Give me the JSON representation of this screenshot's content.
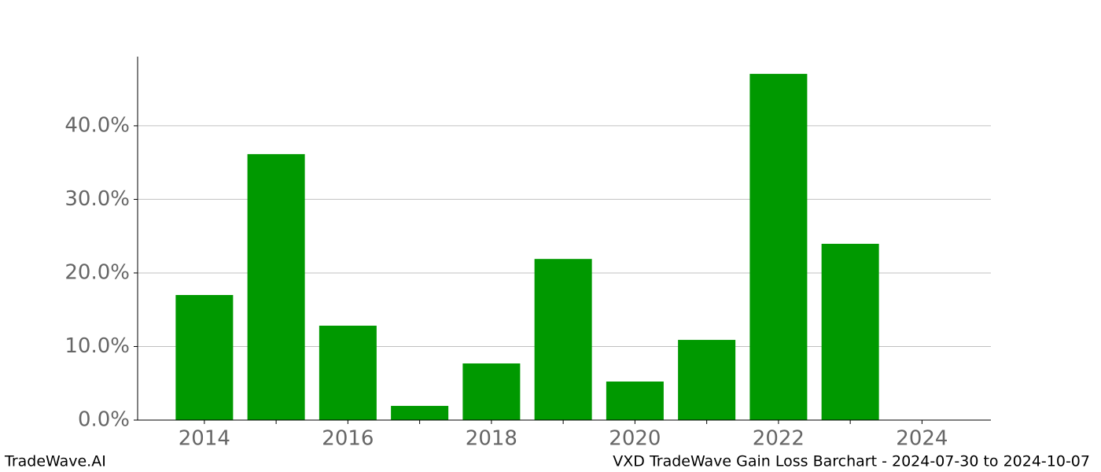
{
  "chart_data": {
    "type": "bar",
    "title": "VXD TradeWave Gain Loss Barchart - 2024-07-30 to 2024-10-07",
    "watermark": "TradeWave.AI",
    "x": [
      2014,
      2015,
      2016,
      2017,
      2018,
      2019,
      2020,
      2021,
      2022,
      2023
    ],
    "values": [
      17.0,
      36.15,
      12.83,
      1.93,
      7.7,
      21.9,
      5.24,
      10.9,
      47.06,
      23.96
    ],
    "color": "#009900",
    "xlim": [
      2013.07,
      2024.96
    ],
    "xticks": [
      2014,
      2016,
      2018,
      2020,
      2022,
      2024
    ],
    "xminorticks": [
      2015,
      2017,
      2019,
      2021,
      2023
    ],
    "ylim": [
      0,
      49.4
    ],
    "yticks": [
      {
        "value": 0,
        "label": "0.0%"
      },
      {
        "value": 10,
        "label": "10.0%"
      },
      {
        "value": 20,
        "label": "20.0%"
      },
      {
        "value": 30,
        "label": "30.0%"
      },
      {
        "value": 40,
        "label": "40.0%"
      }
    ],
    "grid": true
  }
}
